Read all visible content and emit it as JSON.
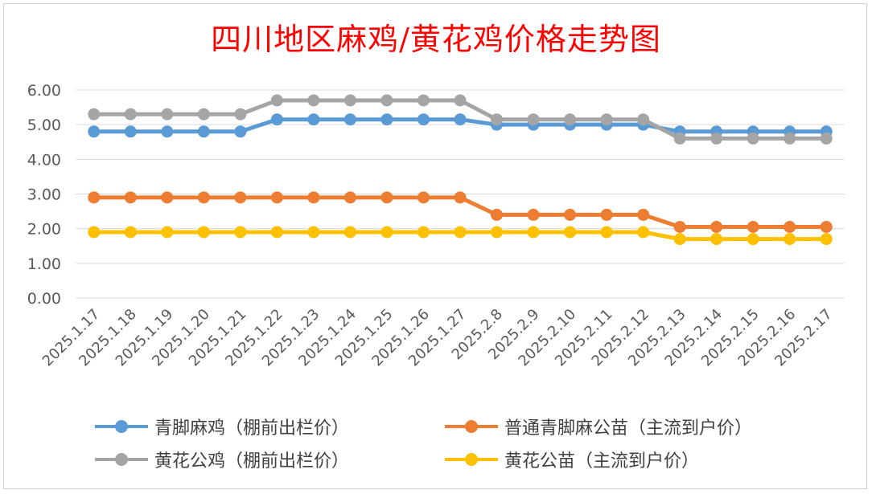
{
  "chart_data": {
    "type": "line",
    "title": "四川地区麻鸡/黄花鸡价格走势图",
    "categories": [
      "2025.1.17",
      "2025.1.18",
      "2025.1.19",
      "2025.1.20",
      "2025.1.21",
      "2025.1.22",
      "2025.1.23",
      "2025.1.24",
      "2025.1.25",
      "2025.1.26",
      "2025.1.27",
      "2025.2.8",
      "2025.2.9",
      "2025.2.10",
      "2025.2.11",
      "2025.2.12",
      "2025.2.13",
      "2025.2.14",
      "2025.2.15",
      "2025.2.16",
      "2025.2.17"
    ],
    "ylim": [
      0,
      6
    ],
    "yticks": [
      "0.00",
      "1.00",
      "2.00",
      "3.00",
      "4.00",
      "5.00",
      "6.00"
    ],
    "grid": true,
    "legend_position": "bottom",
    "series": [
      {
        "name": "青脚麻鸡（棚前出栏价）",
        "color": "#5b9bd5",
        "values": [
          4.8,
          4.8,
          4.8,
          4.8,
          4.8,
          5.15,
          5.15,
          5.15,
          5.15,
          5.15,
          5.15,
          5.0,
          5.0,
          5.0,
          5.0,
          5.0,
          4.8,
          4.8,
          4.8,
          4.8,
          4.8
        ]
      },
      {
        "name": "普通青脚麻公苗（主流到户价）",
        "color": "#ed7d31",
        "values": [
          2.9,
          2.9,
          2.9,
          2.9,
          2.9,
          2.9,
          2.9,
          2.9,
          2.9,
          2.9,
          2.9,
          2.4,
          2.4,
          2.4,
          2.4,
          2.4,
          2.05,
          2.05,
          2.05,
          2.05,
          2.05
        ]
      },
      {
        "name": "黄花公鸡（棚前出栏价）",
        "color": "#a5a5a5",
        "values": [
          5.3,
          5.3,
          5.3,
          5.3,
          5.3,
          5.7,
          5.7,
          5.7,
          5.7,
          5.7,
          5.7,
          5.15,
          5.15,
          5.15,
          5.15,
          5.15,
          4.6,
          4.6,
          4.6,
          4.6,
          4.6
        ]
      },
      {
        "name": "黄花公苗（主流到户价）",
        "color": "#ffc000",
        "values": [
          1.9,
          1.9,
          1.9,
          1.9,
          1.9,
          1.9,
          1.9,
          1.9,
          1.9,
          1.9,
          1.9,
          1.9,
          1.9,
          1.9,
          1.9,
          1.9,
          1.7,
          1.7,
          1.7,
          1.7,
          1.7
        ]
      }
    ]
  }
}
